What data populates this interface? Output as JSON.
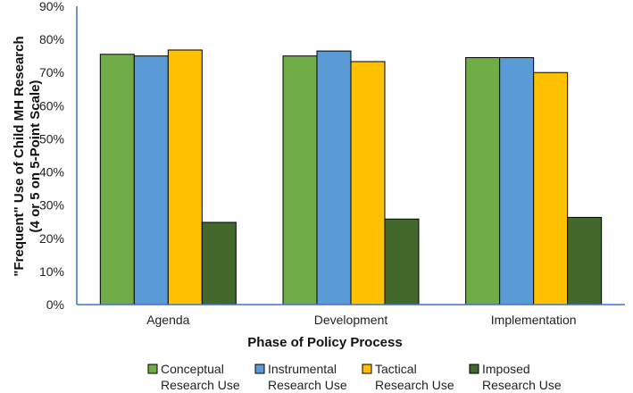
{
  "chart_data": {
    "type": "bar",
    "title": "",
    "xlabel": "Phase of Policy Process",
    "ylabel_lines": [
      "\"Frequent\" Use of Child MH Research",
      "(4 or 5 on 5-Point Scale)"
    ],
    "categories": [
      "Agenda",
      "Development",
      "Implementation"
    ],
    "ylim": [
      0,
      90
    ],
    "yticks": [
      0,
      10,
      20,
      30,
      40,
      50,
      60,
      70,
      80,
      90
    ],
    "ytick_labels": [
      "0%",
      "10%",
      "20%",
      "30%",
      "40%",
      "50%",
      "60%",
      "70%",
      "80%",
      "90%"
    ],
    "grid": false,
    "legend_position": "bottom",
    "series": [
      {
        "name": "Conceptual Research Use",
        "legend_lines": [
          "Conceptual",
          "Research Use"
        ],
        "color": "#70ad47",
        "values": [
          75.5,
          75.0,
          74.5
        ]
      },
      {
        "name": "Instrumental Research Use",
        "legend_lines": [
          "Instrumental",
          "Research Use"
        ],
        "color": "#5b9bd5",
        "values": [
          75.0,
          76.5,
          74.5
        ]
      },
      {
        "name": "Tactical Research Use",
        "legend_lines": [
          "Tactical",
          "Research Use"
        ],
        "color": "#ffc000",
        "values": [
          76.8,
          73.3,
          70.0
        ]
      },
      {
        "name": "Imposed Research Use",
        "legend_lines": [
          "Imposed",
          "Research Use"
        ],
        "color": "#43682b",
        "values": [
          24.8,
          25.8,
          26.3
        ]
      }
    ]
  }
}
